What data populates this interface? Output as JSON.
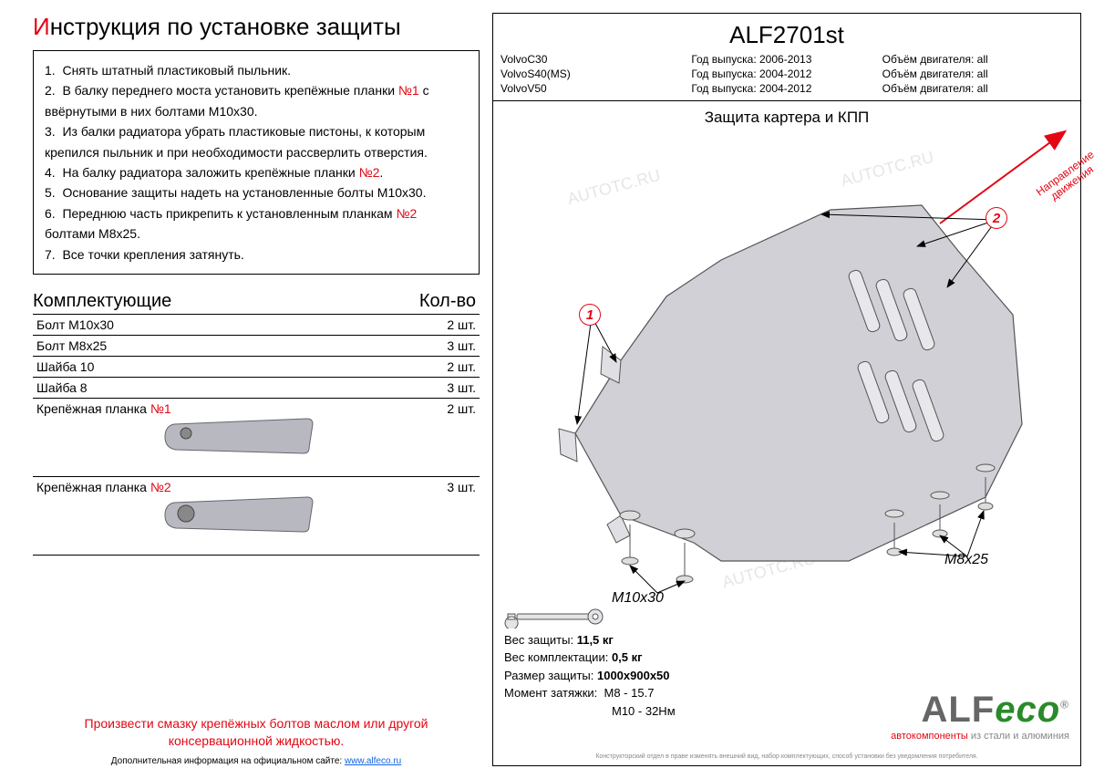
{
  "title": {
    "first_letter": "И",
    "rest": "нструкция по установке защиты"
  },
  "instructions": [
    {
      "n": "1.",
      "text": "Снять штатный пластиковый пыльник."
    },
    {
      "n": "2.",
      "text": "В балку переднего моста установить крепёжные планки ",
      "ref": "№1",
      "tail": " с ввёрнутыми в них болтами М10х30."
    },
    {
      "n": "3.",
      "text": "Из балки радиатора убрать пластиковые пистоны, к которым крепился пыльник и при необходимости рассверлить отверстия."
    },
    {
      "n": "4.",
      "text": "На балку радиатора заложить крепёжные планки ",
      "ref": "№2",
      "tail": "."
    },
    {
      "n": "5.",
      "text": "Основание защиты надеть на установленные болты М10х30."
    },
    {
      "n": "6.",
      "text": "Переднюю часть прикрепить к установленным планкам ",
      "ref": "№2",
      "tail": " болтами М8х25."
    },
    {
      "n": "7.",
      "text": "Все точки крепления затянуть."
    }
  ],
  "components_header": {
    "left": "Комплектующие",
    "right": "Кол-во"
  },
  "components": [
    {
      "name": "Болт М10х30",
      "qty": "2 шт."
    },
    {
      "name": "Болт М8х25",
      "qty": "3 шт."
    },
    {
      "name": "Шайба 10",
      "qty": "2 шт."
    },
    {
      "name": "Шайба 8",
      "qty": "3 шт."
    },
    {
      "name": "Крепёжная планка ",
      "ref": "№1",
      "qty": "2 шт.",
      "plank": 1
    },
    {
      "name": "Крепёжная планка ",
      "ref": "№2",
      "qty": "3 шт.",
      "plank": 2
    }
  ],
  "warning": "Произвести смазку крепёжных болтов маслом или другой консервационной жидкостью.",
  "footer": {
    "text": "Дополнительная информация на официальном сайте: ",
    "link": "www.alfeco.ru"
  },
  "product_code": "ALF2701st",
  "vehicles": {
    "models": [
      "VolvoC30",
      "VolvoS40(MS)",
      "VolvoV50"
    ],
    "year_label": "Год выпуска:",
    "years": [
      "2006-2013",
      "2004-2012",
      "2004-2012"
    ],
    "engine_label": "Объём двигателя:",
    "engines": [
      "all",
      "all",
      "all"
    ]
  },
  "diagram_title": "Защита картера и КПП",
  "direction": {
    "l1": "Направление",
    "l2": "движения"
  },
  "callouts": {
    "c1": "1",
    "c2": "2"
  },
  "bolt_labels": {
    "b1": "M10x30",
    "b2": "M8x25"
  },
  "specs": {
    "weight_label": "Вес защиты:",
    "weight": "11,5 кг",
    "kit_label": "Вес комплектации:",
    "kit": "0,5 кг",
    "size_label": "Размер защиты:",
    "size": "1000х900х50",
    "torque_label": "Момент затяжки:",
    "t1": "М8 - 15.7",
    "t2": "М10 - 32Нм"
  },
  "logo": {
    "main": "ALF",
    "eco": "eco",
    "reg": "®",
    "sub_a": "автокомпоненты",
    "sub_b": " из стали и алюминия"
  },
  "micro": "Конструкторский отдел в праве изменять внешний вид, набор комплектующих, способ установки без уведомления потребителя.",
  "watermark_text": "AUTOTC.RU",
  "colors": {
    "red": "#e30613",
    "plank_fill": "#b8b8c0",
    "plank_stroke": "#66666e",
    "skid_fill": "#d0d0d6",
    "skid_stroke": "#555"
  }
}
